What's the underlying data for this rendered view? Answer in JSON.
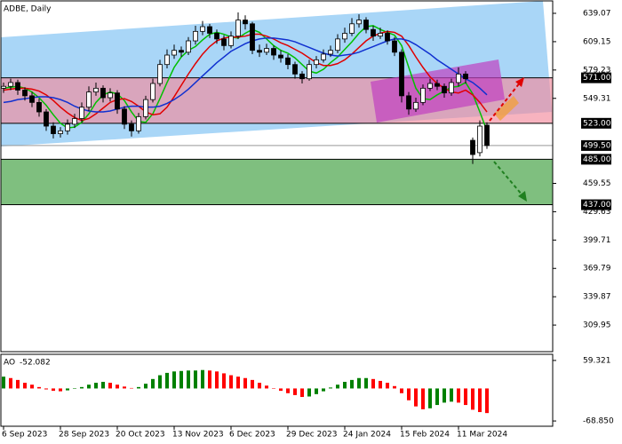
{
  "chart_data": {
    "type": "candlestick",
    "title": "ADBE, Daily",
    "categories": [
      "6 Sep 2023",
      null,
      null,
      null,
      null,
      null,
      null,
      null,
      "28 Sep 2023",
      null,
      null,
      null,
      null,
      null,
      null,
      null,
      "20 Oct 2023",
      null,
      null,
      null,
      null,
      null,
      null,
      null,
      "13 Nov 2023",
      null,
      null,
      null,
      null,
      null,
      null,
      null,
      "6 Dec 2023",
      null,
      null,
      null,
      null,
      null,
      null,
      null,
      "29 Dec 2023",
      null,
      null,
      null,
      null,
      null,
      null,
      null,
      "24 Jan 2024",
      null,
      null,
      null,
      null,
      null,
      null,
      null,
      "15 Feb 2024",
      null,
      null,
      null,
      null,
      null,
      null,
      null,
      "11 Mar 2024",
      null,
      null,
      null,
      null
    ],
    "open": [
      560,
      562,
      566,
      558,
      552,
      545,
      535,
      520,
      512,
      515,
      522,
      528,
      540,
      556,
      560,
      550,
      555,
      538,
      522,
      515,
      530,
      548,
      565,
      585,
      595,
      600,
      598,
      610,
      620,
      625,
      618,
      612,
      605,
      615,
      632,
      628,
      600,
      598,
      602,
      595,
      592,
      585,
      575,
      570,
      585,
      590,
      596,
      600,
      612,
      618,
      628,
      632,
      622,
      615,
      618,
      610,
      598,
      552,
      538,
      545,
      560,
      565,
      562,
      555,
      566,
      575,
      505,
      492,
      521
    ],
    "high": [
      566,
      570,
      569,
      561,
      556,
      549,
      538,
      524,
      519,
      527,
      533,
      545,
      562,
      566,
      563,
      560,
      558,
      541,
      526,
      534,
      552,
      570,
      590,
      601,
      606,
      604,
      614,
      626,
      631,
      628,
      622,
      616,
      620,
      640,
      637,
      630,
      606,
      607,
      605,
      600,
      596,
      588,
      578,
      590,
      594,
      601,
      605,
      617,
      624,
      634,
      638,
      635,
      626,
      624,
      621,
      614,
      601,
      556,
      550,
      564,
      570,
      569,
      565,
      570,
      582,
      578,
      508,
      526,
      524
    ],
    "low": [
      555,
      558,
      553,
      547,
      540,
      530,
      515,
      507,
      508,
      511,
      518,
      524,
      536,
      552,
      545,
      546,
      533,
      517,
      509,
      512,
      527,
      545,
      562,
      581,
      591,
      593,
      595,
      606,
      616,
      613,
      607,
      600,
      602,
      612,
      622,
      596,
      593,
      595,
      590,
      587,
      580,
      570,
      565,
      568,
      581,
      587,
      593,
      597,
      608,
      615,
      624,
      618,
      610,
      612,
      606,
      594,
      545,
      532,
      535,
      542,
      557,
      558,
      550,
      552,
      562,
      565,
      480,
      488,
      496
    ],
    "close": [
      562,
      566,
      558,
      552,
      545,
      535,
      520,
      512,
      515,
      522,
      528,
      540,
      556,
      560,
      550,
      555,
      538,
      522,
      515,
      530,
      548,
      565,
      585,
      595,
      600,
      598,
      610,
      620,
      625,
      618,
      612,
      605,
      615,
      632,
      628,
      600,
      598,
      602,
      595,
      592,
      585,
      575,
      570,
      585,
      590,
      596,
      600,
      612,
      618,
      628,
      632,
      622,
      615,
      618,
      610,
      598,
      552,
      538,
      545,
      560,
      565,
      562,
      555,
      566,
      575,
      570,
      490,
      520,
      499.5
    ],
    "up_color": "#ffffff",
    "down_color": "#000000",
    "series": [
      {
        "color": "#00c000",
        "values": [
          560,
          561,
          562,
          560,
          556,
          550,
          542,
          532,
          523,
          518,
          519,
          524,
          533,
          545,
          553,
          556,
          554,
          547,
          535,
          525,
          524,
          533,
          549,
          566,
          582,
          593,
          600,
          604,
          611,
          617,
          619,
          617,
          614,
          613,
          618,
          622,
          619,
          612,
          605,
          600,
          597,
          592,
          585,
          578,
          576,
          580,
          587,
          593,
          601,
          609,
          618,
          625,
          626,
          622,
          619,
          616,
          605,
          582,
          560,
          549,
          548,
          553,
          557,
          561,
          562,
          566,
          554,
          535,
          515
        ]
      },
      {
        "color": "#e00000",
        "values": [
          558,
          559,
          560,
          560,
          559,
          557,
          553,
          547,
          540,
          534,
          529,
          526,
          528,
          533,
          539,
          545,
          548,
          549,
          546,
          541,
          535,
          532,
          533,
          540,
          551,
          563,
          575,
          586,
          596,
          604,
          610,
          613,
          614,
          614,
          615,
          617,
          617,
          615,
          612,
          608,
          605,
          601,
          597,
          592,
          587,
          584,
          584,
          586,
          590,
          596,
          603,
          610,
          615,
          618,
          620,
          619,
          615,
          605,
          593,
          582,
          572,
          565,
          560,
          556,
          555,
          558,
          553,
          545,
          535
        ]
      },
      {
        "color": "#1030d0",
        "values": [
          545,
          546,
          548,
          549,
          550,
          551,
          551,
          550,
          548,
          545,
          541,
          538,
          536,
          535,
          535,
          536,
          538,
          540,
          541,
          541,
          540,
          540,
          541,
          544,
          548,
          553,
          559,
          566,
          573,
          580,
          587,
          593,
          599,
          603,
          607,
          610,
          612,
          613,
          613,
          612,
          611,
          609,
          606,
          603,
          600,
          597,
          595,
          594,
          595,
          596,
          598,
          601,
          604,
          607,
          610,
          612,
          612,
          610,
          606,
          601,
          596,
          590,
          585,
          580,
          575,
          570,
          566,
          560,
          553
        ]
      }
    ],
    "ylim": [
      281.9,
      652.2
    ],
    "yticks": [
      639.07,
      609.15,
      579.23,
      549.31,
      459.55,
      429.63,
      399.71,
      369.79,
      339.87,
      309.95
    ],
    "levels": [
      {
        "value": 571,
        "label": "571.00"
      },
      {
        "value": 523,
        "label": "523.00"
      },
      {
        "value": 499.5,
        "label": "499.50"
      },
      {
        "value": 485,
        "label": "485.00"
      },
      {
        "value": 437,
        "label": "437.00"
      }
    ],
    "ao": {
      "name": "AO",
      "values": [
        25,
        22,
        18,
        12,
        8,
        3,
        -2,
        -5,
        -6,
        -4,
        -1,
        3,
        8,
        12,
        14,
        12,
        8,
        4,
        1,
        3,
        10,
        20,
        28,
        33,
        36,
        37,
        38,
        38,
        39,
        38,
        36,
        32,
        28,
        25,
        22,
        18,
        12,
        6,
        0,
        -5,
        -10,
        -14,
        -18,
        -17,
        -12,
        -6,
        2,
        8,
        14,
        18,
        22,
        22,
        20,
        16,
        12,
        5,
        -10,
        -25,
        -38,
        -44,
        -42,
        -35,
        -30,
        -28,
        -30,
        -35,
        -45,
        -50,
        -52.082
      ],
      "up_color": "#008000",
      "down_color": "#ff0000",
      "ylim": [
        -80,
        72.3
      ],
      "yticks": [
        59.321,
        {
          "value": -68.85,
          "label": "-68.850"
        }
      ]
    }
  }
}
